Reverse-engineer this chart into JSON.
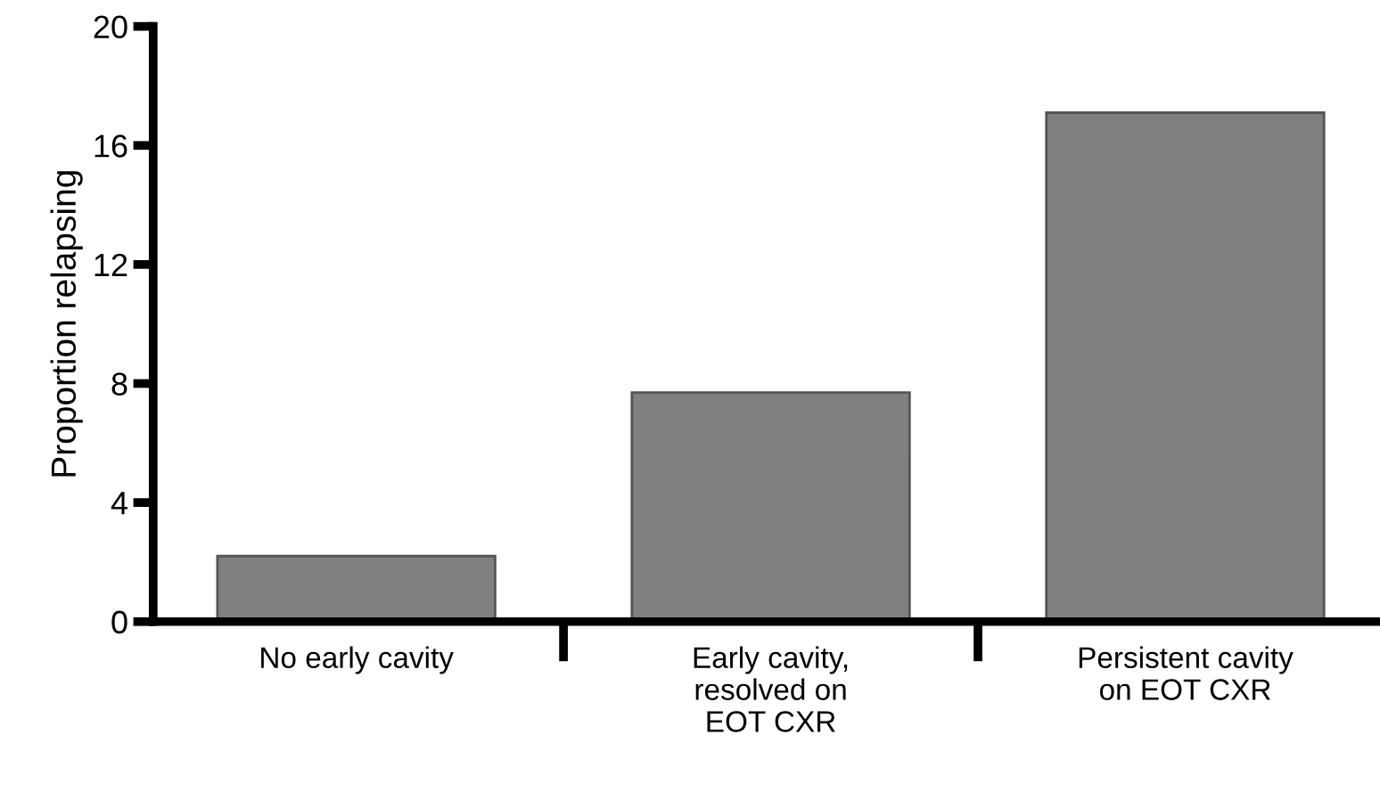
{
  "chart_data": {
    "type": "bar",
    "ylabel": "Proportion relapsing",
    "categories": [
      "No early cavity",
      "Early cavity,\nresolved on\nEOT CXR",
      "Persistent cavity\non EOT CXR"
    ],
    "values": [
      2.2,
      7.7,
      17.1
    ],
    "color": "#808080",
    "ylim": [
      0,
      20
    ],
    "yticks": [
      0,
      4,
      8,
      12,
      16,
      20
    ],
    "grid": false
  }
}
